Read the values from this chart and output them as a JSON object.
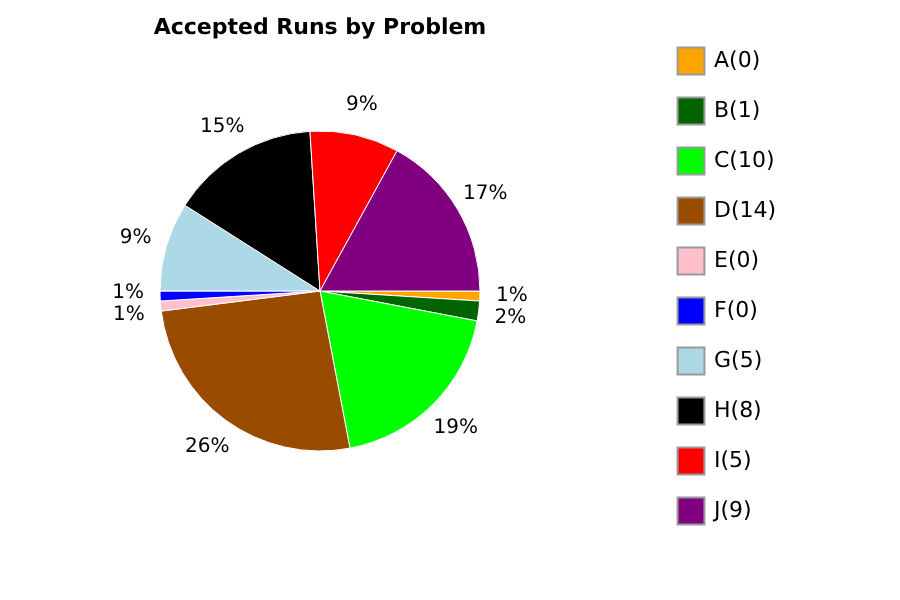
{
  "chart_data": {
    "type": "pie",
    "title": "Accepted Runs by Problem",
    "categories": [
      "A(0)",
      "B(1)",
      "C(10)",
      "D(14)",
      "E(0)",
      "F(0)",
      "G(5)",
      "H(8)",
      "I(5)",
      "J(9)"
    ],
    "values": [
      1,
      2,
      19,
      26,
      1,
      1,
      9,
      15,
      9,
      17
    ],
    "colors": [
      "#ffa500",
      "#006400",
      "#00ff00",
      "#994c00",
      "#ffc0cb",
      "#0000ff",
      "#add8e6",
      "#000000",
      "#ff0000",
      "#800080"
    ],
    "value_labels": [
      "1%",
      "2%",
      "19%",
      "26%",
      "1%",
      "1%",
      "9%",
      "15%",
      "9%",
      "17%"
    ],
    "legend": "right"
  }
}
